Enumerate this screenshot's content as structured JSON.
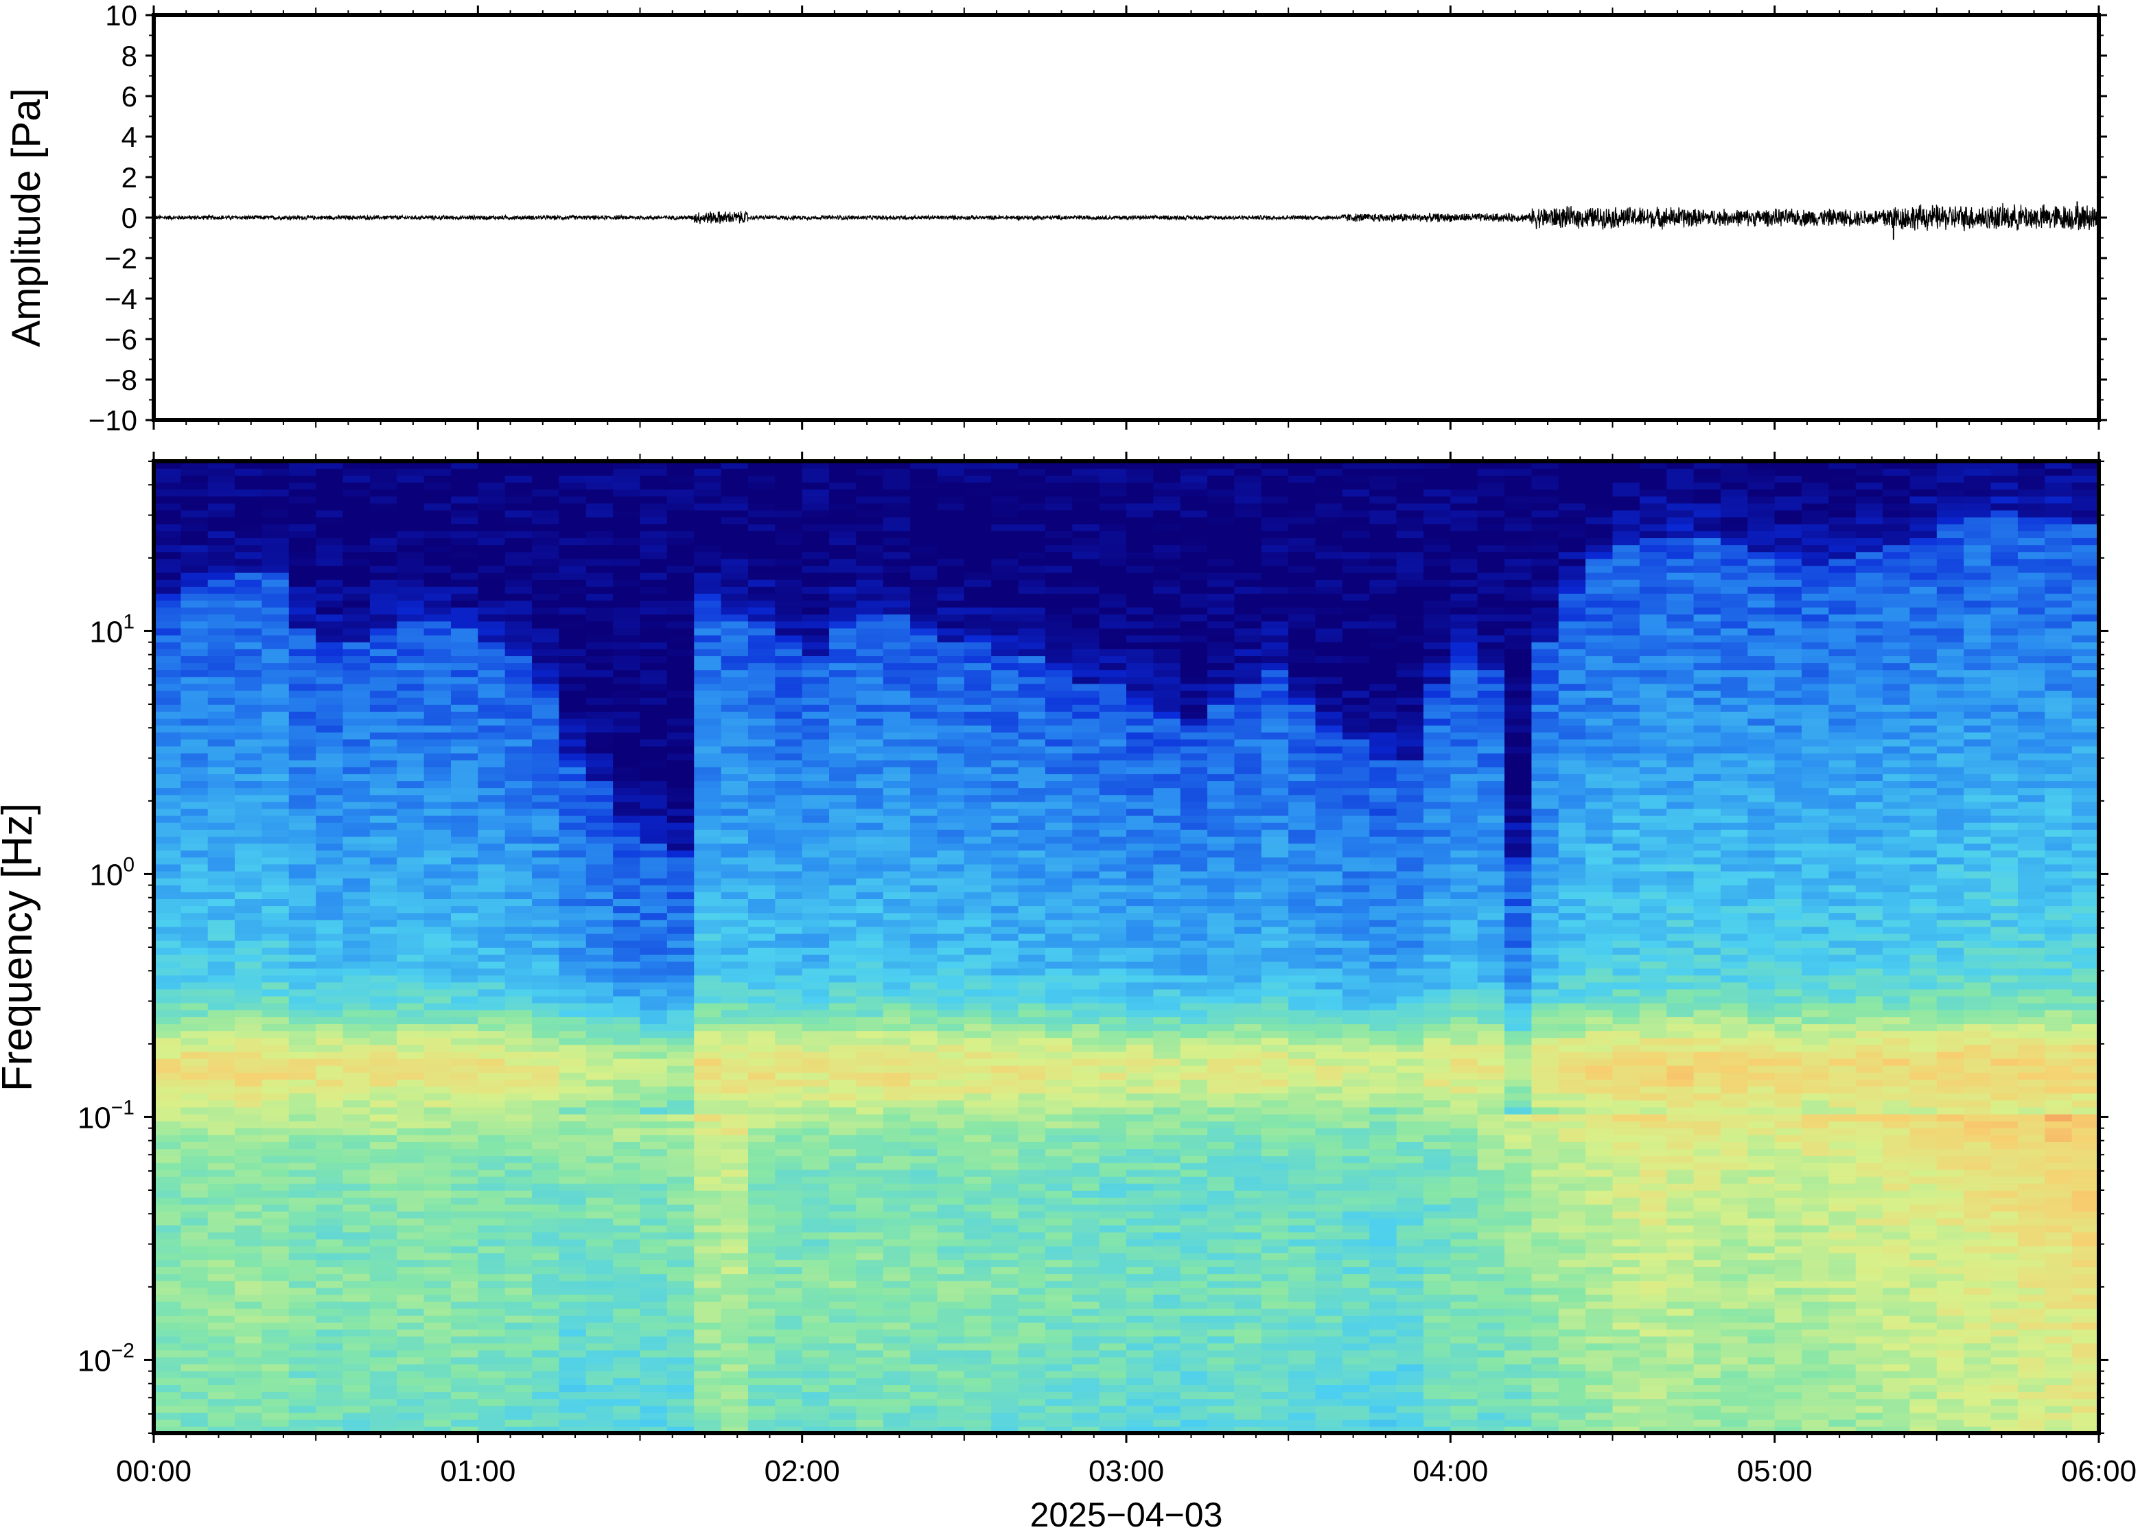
{
  "figure": {
    "colors": {
      "frame": "#000000",
      "background": "#ffffff",
      "trace": "#000000"
    }
  },
  "chart_data": [
    {
      "type": "line",
      "ylabel": "Amplitude [Pa]",
      "ylim": [
        -10,
        10
      ],
      "yticks": [
        10,
        8,
        6,
        4,
        2,
        0,
        -2,
        -4,
        -6,
        -8,
        -10
      ],
      "ytick_labels": [
        "10",
        "8",
        "6",
        "4",
        "2",
        "0",
        "−2",
        "−4",
        "−6",
        "−8",
        "−10"
      ],
      "x_range": [
        "00:00",
        "06:00"
      ],
      "series": [
        {
          "description_free": true,
          "segments": [
            {
              "from": "00:00",
              "to": "01:40",
              "envelope": 0.1
            },
            {
              "from": "01:40",
              "to": "01:50",
              "envelope": 0.3
            },
            {
              "from": "01:50",
              "to": "03:40",
              "envelope": 0.1
            },
            {
              "from": "03:40",
              "to": "04:15",
              "envelope": 0.2
            },
            {
              "from": "04:15",
              "to": "04:45",
              "envelope": 0.5
            },
            {
              "from": "04:45",
              "to": "05:20",
              "envelope": 0.4
            },
            {
              "from": "05:20",
              "to": "06:00",
              "envelope": 0.6
            }
          ],
          "spikes": [
            {
              "x": "05:22",
              "y": -1.1
            },
            {
              "x": "05:56",
              "y": 0.8
            }
          ]
        }
      ],
      "grid": false
    },
    {
      "type": "heatmap",
      "ylabel": "Frequency [Hz]",
      "xlabel": "2025−04−03",
      "yscale": "log",
      "ylim": [
        0.005,
        50
      ],
      "yticks": [
        0.01,
        0.1,
        1,
        10
      ],
      "ytick_labels": [
        {
          "base": "10",
          "exp": "−2"
        },
        {
          "base": "10",
          "exp": "−1"
        },
        {
          "base": "10",
          "exp": "0"
        },
        {
          "base": "10",
          "exp": "1"
        }
      ],
      "xticks": [
        "00:00",
        "01:00",
        "02:00",
        "03:00",
        "04:00",
        "05:00",
        "06:00"
      ],
      "colormap": [
        "#0a0079",
        "#0a2ad8",
        "#2a8cf0",
        "#4ccff0",
        "#86e6a8",
        "#d8f08a",
        "#f7d070",
        "#f49058",
        "#e8503a"
      ],
      "time_columns_min": [
        0,
        5,
        10,
        15,
        20,
        25,
        30,
        35,
        40,
        45,
        50,
        55,
        60,
        65,
        70,
        75,
        80,
        85,
        90,
        95,
        100,
        105,
        110,
        115,
        120,
        125,
        130,
        135,
        140,
        145,
        150,
        155,
        160,
        165,
        170,
        175,
        180,
        185,
        190,
        195,
        200,
        205,
        210,
        215,
        220,
        225,
        230,
        235,
        240,
        245,
        250,
        255,
        260,
        265,
        270,
        275,
        280,
        285,
        290,
        295,
        300,
        305,
        310,
        315,
        320,
        325,
        330,
        335,
        340,
        345,
        350,
        355
      ],
      "noise_top_hz": [
        14,
        15,
        16,
        17,
        17,
        10,
        9,
        9,
        10,
        11,
        11,
        10,
        9,
        8,
        6,
        3,
        2.5,
        1.6,
        1.3,
        1.2,
        14,
        12,
        11,
        9,
        8,
        11,
        12,
        12,
        10,
        9,
        9,
        8,
        8,
        7,
        6,
        6,
        5,
        4.5,
        4,
        5,
        6,
        7,
        5,
        4,
        3.5,
        3,
        3,
        6,
        8,
        7,
        1.2,
        9,
        14,
        20,
        22,
        24,
        25,
        24,
        23,
        21,
        20,
        19,
        20,
        21,
        23,
        25,
        27,
        29,
        31,
        30,
        29,
        28
      ],
      "microbarom_level": [
        0.62,
        0.63,
        0.64,
        0.63,
        0.62,
        0.61,
        0.6,
        0.61,
        0.62,
        0.63,
        0.62,
        0.61,
        0.6,
        0.6,
        0.59,
        0.6,
        0.61,
        0.62,
        0.61,
        0.62,
        0.7,
        0.72,
        0.62,
        0.6,
        0.6,
        0.61,
        0.6,
        0.59,
        0.58,
        0.58,
        0.59,
        0.6,
        0.6,
        0.59,
        0.58,
        0.57,
        0.57,
        0.58,
        0.57,
        0.56,
        0.56,
        0.57,
        0.58,
        0.57,
        0.56,
        0.56,
        0.57,
        0.58,
        0.6,
        0.64,
        0.66,
        0.68,
        0.7,
        0.72,
        0.74,
        0.75,
        0.74,
        0.73,
        0.72,
        0.72,
        0.72,
        0.73,
        0.74,
        0.75,
        0.76,
        0.77,
        0.78,
        0.79,
        0.8,
        0.81,
        0.82,
        0.84
      ]
    }
  ]
}
